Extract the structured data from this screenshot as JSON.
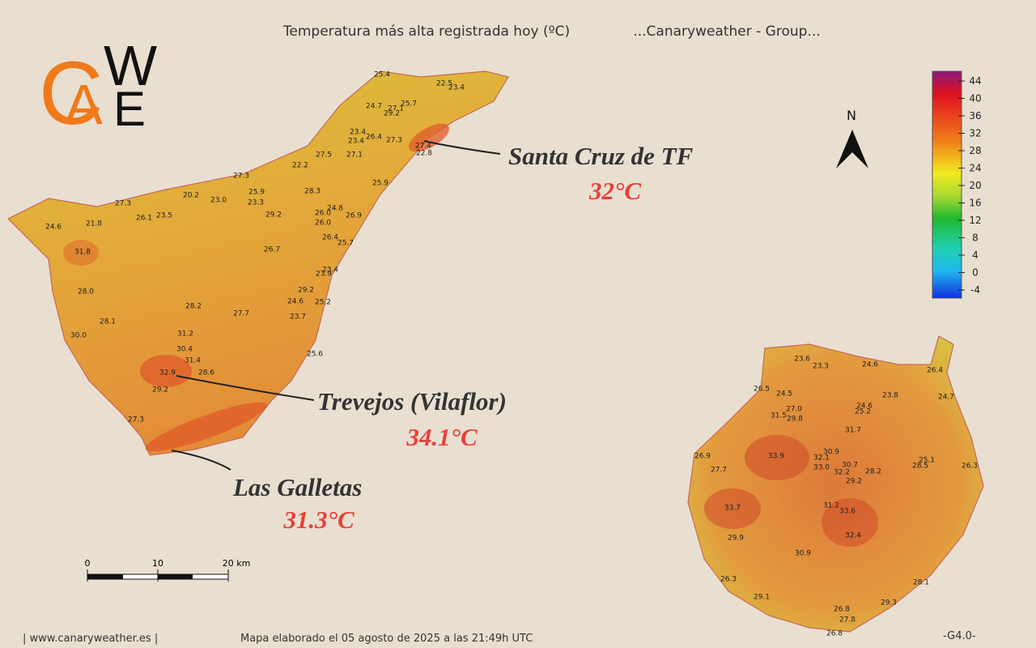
{
  "header": {
    "title": "Temperatura más alta registrada hoy (ºC)",
    "subtitle": "...Canaryweather - Group..."
  },
  "logo": {
    "letters": [
      "C",
      "A",
      "W",
      "E"
    ]
  },
  "compass": "N",
  "legend": {
    "ticks": [
      44,
      40,
      36,
      32,
      28,
      24,
      20,
      16,
      12,
      8,
      4,
      0,
      -4
    ]
  },
  "callouts": [
    {
      "place": "Santa Cruz de TF",
      "temp": "32°C"
    },
    {
      "place": "Trevejos (Vilaflor)",
      "temp": "34.1°C"
    },
    {
      "place": "Las Galletas",
      "temp": "31.3°C"
    }
  ],
  "scale": {
    "labels": [
      "0",
      "10",
      "20 km"
    ]
  },
  "stations": {
    "tenerife": [
      "25.4",
      "22.5",
      "23.4",
      "24.7",
      "25.7",
      "27.1",
      "29.2",
      "23.4",
      "26.4",
      "27.3",
      "27.4",
      "22.8",
      "23.4",
      "27.5",
      "27.1",
      "22.2",
      "27.3",
      "25.9",
      "20.2",
      "23.0",
      "25.9",
      "28.3",
      "23.3",
      "27.3",
      "26.1",
      "23.5",
      "21.8",
      "24.6",
      "29.2",
      "24.8",
      "26.0",
      "26.9",
      "26.0",
      "26.4",
      "25.7",
      "31.8",
      "26.7",
      "23.4",
      "23.9",
      "28.0",
      "29.2",
      "24.6",
      "25.2",
      "28.2",
      "27.7",
      "23.7",
      "28.1",
      "30.0",
      "31.2",
      "30.4",
      "31.4",
      "25.6",
      "32.9",
      "28.6",
      "29.2",
      "27.3"
    ],
    "gran_canaria": [
      "23.6",
      "23.3",
      "24.6",
      "26.4",
      "26.5",
      "24.5",
      "23.8",
      "24.7",
      "27.0",
      "31.5",
      "29.8",
      "24.6",
      "25.2",
      "31.7",
      "30.9",
      "32.1",
      "30.7",
      "33.0",
      "32.2",
      "28.2",
      "33.9",
      "25.1",
      "28.5",
      "26.3",
      "26.9",
      "27.7",
      "29.2",
      "33.7",
      "31.2",
      "33.6",
      "29.9",
      "32.4",
      "30.9",
      "26.3",
      "28.1",
      "29.1",
      "29.3",
      "26.8",
      "27.8",
      "26.8"
    ]
  },
  "footer": {
    "site": "| www.canaryweather.es |",
    "note": "Mapa elaborado el 05 agosto de 2025 a las 21:49h UTC",
    "code": "-G4.0-"
  }
}
